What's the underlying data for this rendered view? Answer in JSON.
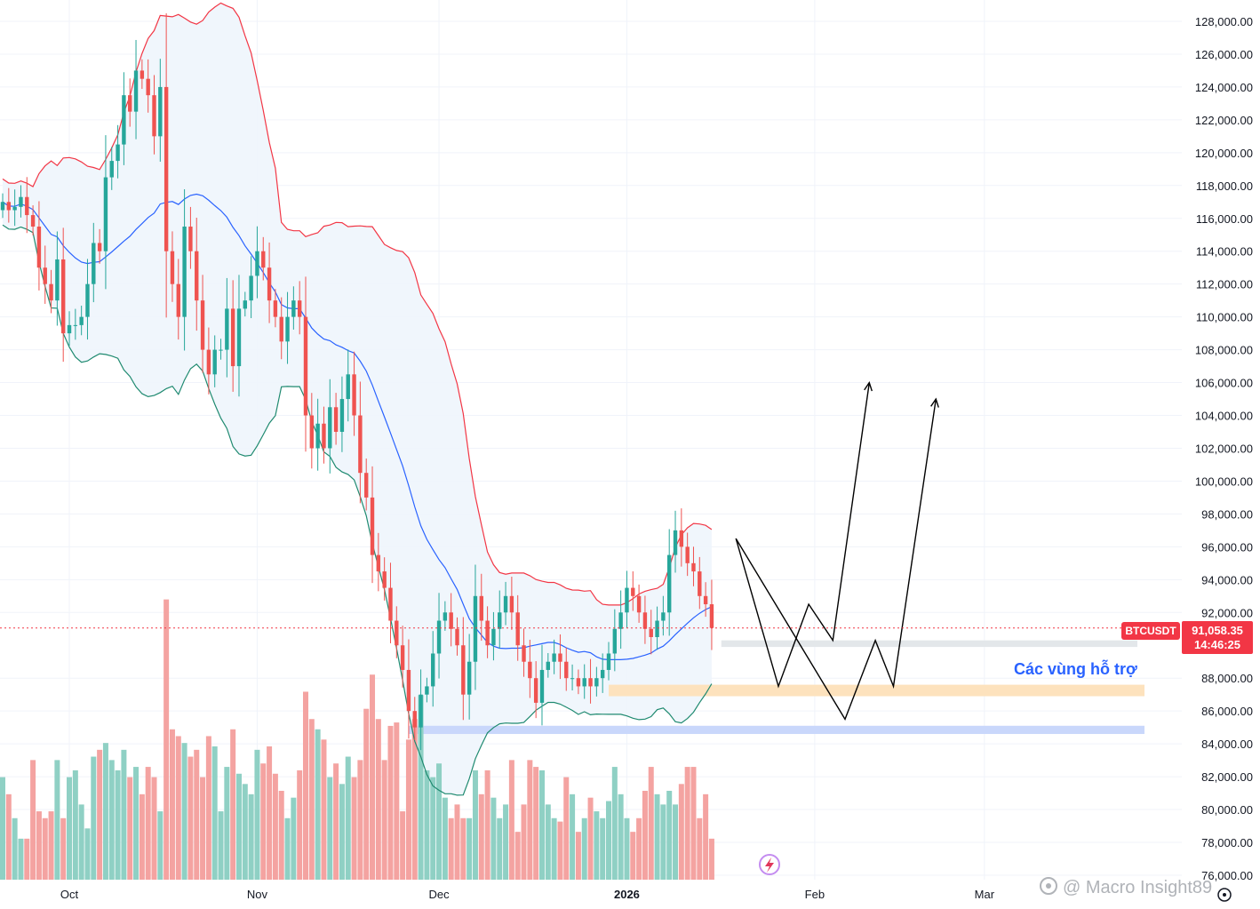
{
  "chart_data": {
    "type": "candlestick",
    "symbol": "BTCUSDT",
    "last_price": "91,058.35",
    "countdown": "14:46:25",
    "annotation": "Các vùng hỗ trợ",
    "watermark": "@ Macro Insight89",
    "ylim": [
      76000,
      128000
    ],
    "y_ticks": [
      "128,000.00",
      "126,000.00",
      "124,000.00",
      "122,000.00",
      "120,000.00",
      "118,000.00",
      "116,000.00",
      "114,000.00",
      "112,000.00",
      "110,000.00",
      "108,000.00",
      "106,000.00",
      "104,000.00",
      "102,000.00",
      "100,000.00",
      "98,000.00",
      "96,000.00",
      "94,000.00",
      "92,000.00",
      "88,000.00",
      "86,000.00",
      "84,000.00",
      "82,000.00",
      "80,000.00",
      "78,000.00",
      "76,000.00"
    ],
    "y_tick_values": [
      128000,
      126000,
      124000,
      122000,
      120000,
      118000,
      116000,
      114000,
      112000,
      110000,
      108000,
      106000,
      104000,
      102000,
      100000,
      98000,
      96000,
      94000,
      92000,
      88000,
      86000,
      84000,
      82000,
      80000,
      78000,
      76000
    ],
    "x_ticks": [
      {
        "label": "Oct",
        "bar": 11,
        "bold": false
      },
      {
        "label": "Nov",
        "bar": 42,
        "bold": false
      },
      {
        "label": "Dec",
        "bar": 72,
        "bold": false
      },
      {
        "label": "2026",
        "bar": 103,
        "bold": true
      },
      {
        "label": "Feb",
        "bar": 134,
        "bold": false
      },
      {
        "label": "Mar",
        "bar": 162,
        "bold": false
      }
    ],
    "colors": {
      "up": "#26a69a",
      "down": "#ef5350",
      "vol_up": "#8fd0c4",
      "vol_down": "#f4a3a1",
      "bb_upper": "#f23645",
      "bb_lower": "#1f8a70",
      "bb_basis": "#2962ff",
      "bb_fill": "#eef5fc",
      "support_gray": "#e3e7ea",
      "support_orange": "#fde2bd",
      "support_blue": "#c9d7fb",
      "price_line": "#f23645",
      "projection": "#000000"
    },
    "closes": [
      117000,
      116500,
      116700,
      117300,
      116200,
      115500,
      113000,
      112000,
      111000,
      113500,
      109000,
      109500,
      109500,
      110000,
      112000,
      114500,
      114000,
      118500,
      119500,
      120500,
      123500,
      122500,
      125000,
      124500,
      123500,
      121000,
      124000,
      114000,
      112000,
      110000,
      115500,
      114000,
      111000,
      108000,
      106500,
      108000,
      108000,
      110500,
      107000,
      110500,
      111000,
      112500,
      114000,
      113000,
      111000,
      110000,
      108500,
      110000,
      111000,
      110000,
      104000,
      102000,
      103500,
      102000,
      104500,
      103000,
      105000,
      106500,
      104000,
      100500,
      99000,
      95500,
      94500,
      93500,
      91500,
      90000,
      88500,
      86000,
      85000,
      87000,
      87500,
      89500,
      91500,
      92000,
      91000,
      90000,
      87000,
      89000,
      93000,
      91500,
      90000,
      91000,
      92000,
      93000,
      92000,
      90000,
      89000,
      88000,
      86500,
      88500,
      89000,
      89500,
      89000,
      88000,
      88000,
      87500,
      88000,
      87500,
      88000,
      88500,
      89500,
      91000,
      92000,
      93500,
      93000,
      92000,
      91000,
      90500,
      91500,
      92000,
      95500,
      97000,
      96000,
      95000,
      94500,
      93000,
      92500,
      91058
    ],
    "volumes": [
      3000,
      2500,
      1800,
      1200,
      1200,
      3500,
      2000,
      1800,
      2000,
      3500,
      1800,
      3000,
      3200,
      2200,
      1500,
      3600,
      3800,
      4000,
      3500,
      3200,
      3800,
      3000,
      3300,
      2500,
      3300,
      3000,
      2000,
      8200,
      4400,
      4200,
      4000,
      3600,
      3800,
      3000,
      4200,
      3900,
      2000,
      3300,
      4400,
      3100,
      2800,
      2500,
      3800,
      3400,
      3900,
      3100,
      2600,
      1800,
      2400,
      3200,
      5500,
      4700,
      4400,
      4100,
      3000,
      3400,
      2800,
      3600,
      3000,
      3500,
      5000,
      6000,
      4700,
      3500,
      4500,
      4600,
      2000,
      4100,
      4700,
      5400,
      3200,
      3000,
      3400,
      2400,
      1800,
      2200,
      1800,
      1800,
      3200,
      2500,
      3200,
      2400,
      1800,
      2200,
      3500,
      1400,
      2200,
      3500,
      3300,
      3200,
      2200,
      1800,
      1700,
      3000,
      2500,
      1400,
      1800,
      2400,
      2000,
      1800,
      2300,
      3300,
      2500,
      1800,
      1400,
      1800,
      2600,
      3300,
      2500,
      2200,
      2600,
      2200,
      2800,
      3300,
      3300,
      1800,
      2500,
      1200
    ]
  }
}
